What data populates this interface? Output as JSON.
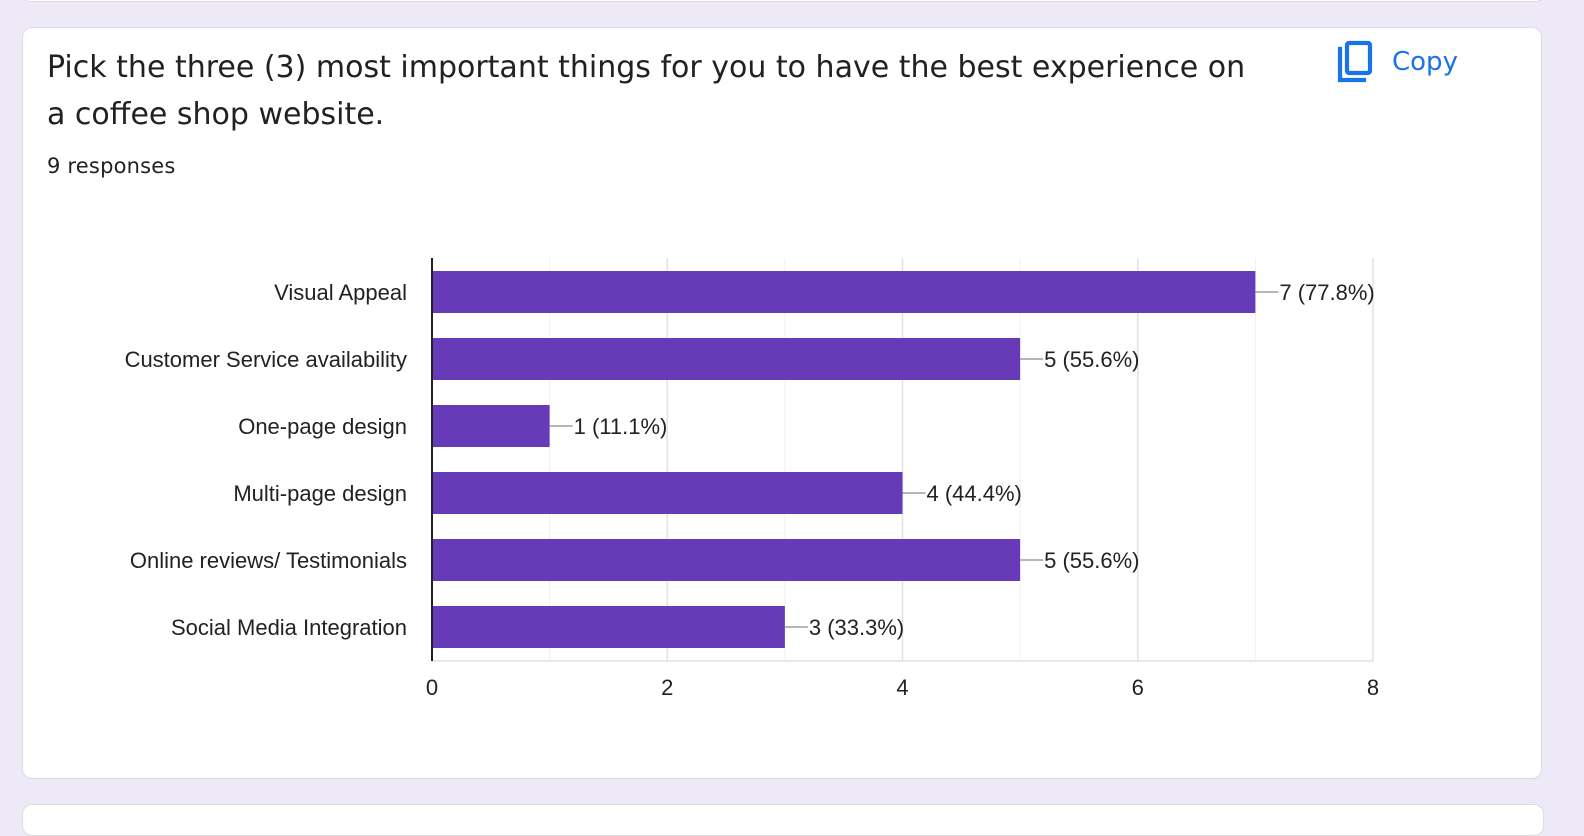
{
  "question": {
    "title": "Pick the three (3) most important things for you to have the best experience on a coffee shop website.",
    "response_count": "9 responses",
    "copy_label": "Copy",
    "copy_icon": "content-copy-icon"
  },
  "colors": {
    "bar": "#673ab7",
    "accent": "#1a73e8",
    "page_background": "#ede9f7"
  },
  "chart_data": {
    "type": "bar",
    "orientation": "horizontal",
    "categories": [
      "Visual Appeal",
      "Customer Service availability",
      "One-page design",
      "Multi-page design",
      "Online reviews/ Testimonials",
      "Social Media Integration"
    ],
    "values": [
      7,
      5,
      1,
      4,
      5,
      3
    ],
    "data_labels": [
      "7 (77.8%)",
      "5 (55.6%)",
      "1 (11.1%)",
      "4 (44.4%)",
      "5 (55.6%)",
      "3 (33.3%)"
    ],
    "xlim": [
      0,
      8
    ],
    "x_ticks": [
      0,
      2,
      4,
      6,
      8
    ],
    "grid": true,
    "legend": "none"
  }
}
